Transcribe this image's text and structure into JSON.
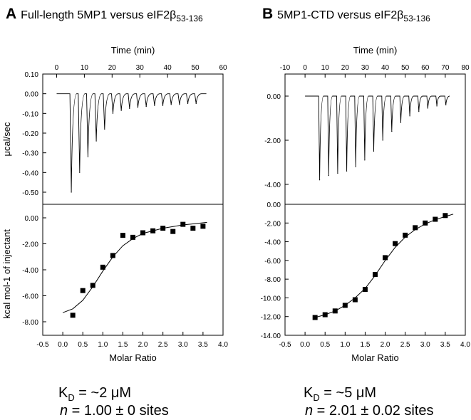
{
  "panels": [
    {
      "letter": "A",
      "title_main": "Full-length 5MP1 versus eIF2β",
      "title_sub": "53-136",
      "kd_symbol": "K",
      "kd_sub": "D",
      "kd_value": " = ~2 μM",
      "n_symbol": "n",
      "n_value": " = 1.00 ± 0 sites"
    },
    {
      "letter": "B",
      "title_main": "5MP1-CTD versus eIF2β",
      "title_sub": "53-136",
      "kd_symbol": "K",
      "kd_sub": "D",
      "kd_value": " = ~5 μM",
      "n_symbol": "n",
      "n_value": " = 2.01 ± 0.02 sites"
    }
  ],
  "chart_data": [
    {
      "type": "line",
      "panel": "A-top",
      "xlabel": "Time (min)",
      "ylabel": "μcal/sec",
      "xlim": [
        -5,
        60
      ],
      "ylim": [
        -0.55,
        0.1
      ],
      "x_ticks": [
        0,
        10,
        20,
        30,
        40,
        50,
        60
      ],
      "y_ticks": [
        0.1,
        0.0,
        -0.1,
        -0.2,
        -0.3,
        -0.4,
        -0.5
      ],
      "x_tick_labels": [
        "0",
        "10",
        "20",
        "30",
        "40",
        "50",
        "60"
      ],
      "y_tick_labels": [
        "0.10",
        "0.00",
        "-0.10",
        "-0.20",
        "-0.30",
        "-0.40",
        "-0.50"
      ],
      "baseline": 0.0,
      "time_range": [
        0,
        54
      ],
      "injection_times": [
        5,
        8,
        11,
        14,
        17,
        20,
        23,
        26,
        29,
        32,
        35,
        38,
        41,
        44,
        47,
        50
      ],
      "peak_values": [
        -0.5,
        -0.4,
        -0.32,
        -0.24,
        -0.18,
        -0.1,
        -0.085,
        -0.075,
        -0.07,
        -0.065,
        -0.06,
        -0.06,
        -0.055,
        -0.055,
        -0.05,
        -0.05
      ]
    },
    {
      "type": "scatter",
      "panel": "A-bottom",
      "xlabel": "Molar Ratio",
      "ylabel": "kcal mol-1 of injectant",
      "xlim": [
        -0.5,
        4.0
      ],
      "ylim": [
        -9.0,
        1.0
      ],
      "x_ticks": [
        -0.5,
        0.0,
        0.5,
        1.0,
        1.5,
        2.0,
        2.5,
        3.0,
        3.5,
        4.0
      ],
      "y_ticks": [
        0.0,
        -2.0,
        -4.0,
        -6.0,
        -8.0
      ],
      "x_tick_labels": [
        "-0.5",
        "0.0",
        "0.5",
        "1.0",
        "1.5",
        "2.0",
        "2.5",
        "3.0",
        "3.5",
        "4.0"
      ],
      "y_tick_labels": [
        "0.00",
        "-2.00",
        "-4.00",
        "-6.00",
        "-8.00"
      ],
      "points": [
        [
          0.25,
          -7.5
        ],
        [
          0.5,
          -5.6
        ],
        [
          0.75,
          -5.2
        ],
        [
          1.0,
          -3.8
        ],
        [
          1.25,
          -2.9
        ],
        [
          1.5,
          -1.35
        ],
        [
          1.75,
          -1.5
        ],
        [
          2.0,
          -1.15
        ],
        [
          2.25,
          -1.0
        ],
        [
          2.5,
          -0.8
        ],
        [
          2.75,
          -1.05
        ],
        [
          3.0,
          -0.5
        ],
        [
          3.25,
          -0.8
        ],
        [
          3.5,
          -0.65
        ]
      ],
      "fit": [
        [
          0.0,
          -7.3
        ],
        [
          0.25,
          -7.0
        ],
        [
          0.5,
          -6.35
        ],
        [
          0.75,
          -5.3
        ],
        [
          1.0,
          -4.1
        ],
        [
          1.25,
          -3.0
        ],
        [
          1.5,
          -2.15
        ],
        [
          1.75,
          -1.6
        ],
        [
          2.0,
          -1.2
        ],
        [
          2.5,
          -0.8
        ],
        [
          3.0,
          -0.55
        ],
        [
          3.6,
          -0.35
        ]
      ]
    },
    {
      "type": "line",
      "panel": "B-top",
      "xlabel": "Time (min)",
      "ylabel": "",
      "xlim": [
        -10,
        80
      ],
      "ylim": [
        -5.0,
        1.0
      ],
      "x_ticks": [
        -10,
        0,
        10,
        20,
        30,
        40,
        50,
        60,
        70,
        80
      ],
      "y_ticks": [
        0.0,
        -2.0,
        -4.0
      ],
      "x_tick_labels": [
        "-10",
        "0",
        "10",
        "20",
        "30",
        "40",
        "50",
        "60",
        "70",
        "80"
      ],
      "y_tick_labels": [
        "0.00",
        "-2.00",
        "-4.00"
      ],
      "baseline": 0.0,
      "time_range": [
        0,
        72
      ],
      "injection_times": [
        7,
        11.5,
        16,
        20.5,
        25,
        29.5,
        34,
        38.5,
        43,
        47.5,
        52,
        56.5,
        61,
        65.5,
        70
      ],
      "peak_values": [
        -3.8,
        -3.6,
        -3.5,
        -3.4,
        -3.2,
        -2.9,
        -2.5,
        -2.0,
        -1.6,
        -1.2,
        -0.9,
        -0.7,
        -0.55,
        -0.45,
        -0.4
      ]
    },
    {
      "type": "scatter",
      "panel": "B-bottom",
      "xlabel": "Molar Ratio",
      "ylabel": "",
      "xlim": [
        -0.5,
        4.0
      ],
      "ylim": [
        -14.0,
        0.0
      ],
      "x_ticks": [
        -0.5,
        0.0,
        0.5,
        1.0,
        1.5,
        2.0,
        2.5,
        3.0,
        3.5,
        4.0
      ],
      "y_ticks": [
        0.0,
        -2.0,
        -4.0,
        -6.0,
        -8.0,
        -10.0,
        -12.0,
        -14.0
      ],
      "x_tick_labels": [
        "-0.5",
        "0.0",
        "0.5",
        "1.0",
        "1.5",
        "2.0",
        "2.5",
        "3.0",
        "3.5",
        "4.0"
      ],
      "y_tick_labels": [
        "0.00",
        "-2.00",
        "-4.00",
        "-6.00",
        "-8.00",
        "-10.00",
        "-12.00",
        "-14.00"
      ],
      "points": [
        [
          0.25,
          -12.1
        ],
        [
          0.5,
          -11.8
        ],
        [
          0.75,
          -11.4
        ],
        [
          1.0,
          -10.8
        ],
        [
          1.25,
          -10.2
        ],
        [
          1.5,
          -9.1
        ],
        [
          1.75,
          -7.5
        ],
        [
          2.0,
          -5.7
        ],
        [
          2.25,
          -4.2
        ],
        [
          2.5,
          -3.3
        ],
        [
          2.75,
          -2.5
        ],
        [
          3.0,
          -2.0
        ],
        [
          3.25,
          -1.6
        ],
        [
          3.5,
          -1.2
        ]
      ],
      "fit": [
        [
          0.25,
          -12.1
        ],
        [
          0.5,
          -11.8
        ],
        [
          0.75,
          -11.4
        ],
        [
          1.0,
          -10.8
        ],
        [
          1.25,
          -10.0
        ],
        [
          1.5,
          -9.0
        ],
        [
          1.75,
          -7.6
        ],
        [
          2.0,
          -6.0
        ],
        [
          2.25,
          -4.6
        ],
        [
          2.5,
          -3.5
        ],
        [
          2.75,
          -2.7
        ],
        [
          3.0,
          -2.1
        ],
        [
          3.25,
          -1.65
        ],
        [
          3.5,
          -1.3
        ],
        [
          3.7,
          -1.05
        ]
      ]
    }
  ]
}
